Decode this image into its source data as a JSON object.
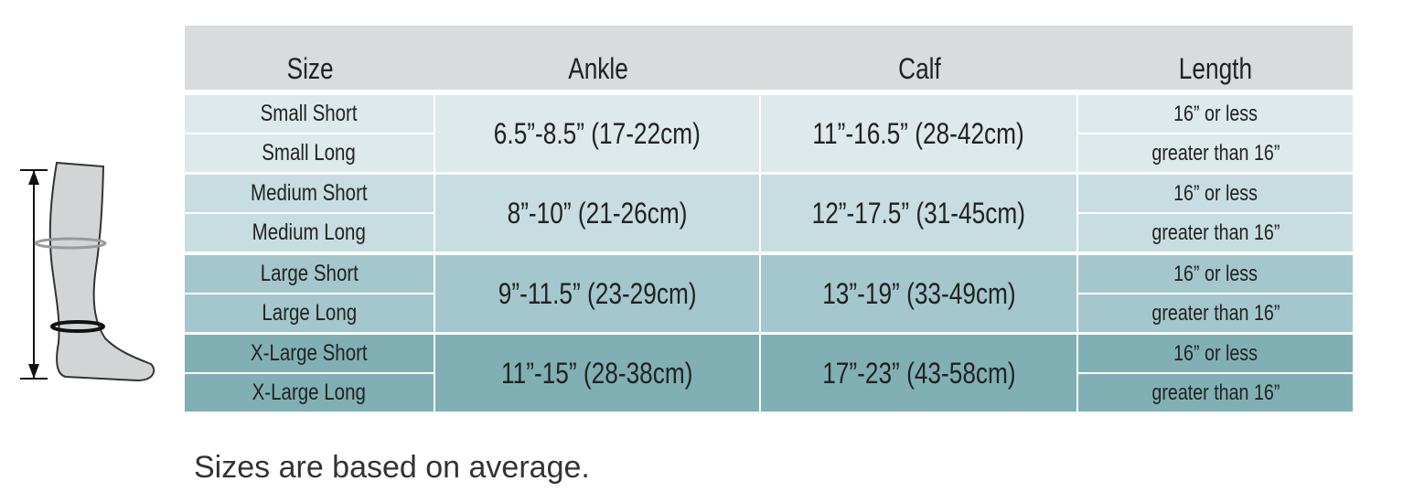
{
  "table": {
    "header": [
      "Size",
      "Ankle",
      "Calf",
      "Length"
    ],
    "groups": [
      {
        "sizes": [
          "Small Short",
          "Small Long"
        ],
        "ankle": "6.5”-8.5” (17-22cm)",
        "calf": "11”-16.5” (28-42cm)",
        "lengths": [
          "16” or less",
          "greater than 16”"
        ]
      },
      {
        "sizes": [
          "Medium Short",
          "Medium Long"
        ],
        "ankle": "8”-10” (21-26cm)",
        "calf": "12”-17.5” (31-45cm)",
        "lengths": [
          "16” or less",
          "greater than 16”"
        ]
      },
      {
        "sizes": [
          "Large Short",
          "Large Long"
        ],
        "ankle": "9”-11.5” (23-29cm)",
        "calf": "13”-19” (33-49cm)",
        "lengths": [
          "16” or less",
          "greater than 16”"
        ]
      },
      {
        "sizes": [
          "X-Large Short",
          "X-Large Long"
        ],
        "ankle": "11”-15” (28-38cm)",
        "calf": "17”-23” (43-58cm)",
        "lengths": [
          "16” or less",
          "greater than 16”"
        ]
      }
    ]
  },
  "footnote": "Sizes are based on average."
}
